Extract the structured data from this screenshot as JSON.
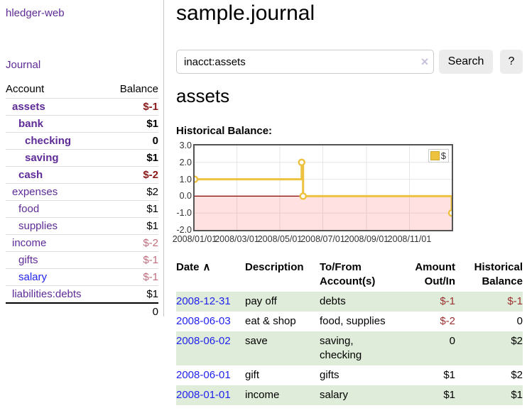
{
  "app": {
    "title": "hledger-web"
  },
  "sidebar": {
    "journal_label": "Journal",
    "accounts_table": {
      "headers": [
        "Account",
        "Balance"
      ],
      "rows": [
        {
          "account": "assets",
          "balance": "$-1",
          "depth": 1,
          "matched": true,
          "balance_tone": "negative"
        },
        {
          "account": "bank",
          "balance": "$1",
          "depth": 2,
          "matched": true,
          "balance_tone": "normal"
        },
        {
          "account": "checking",
          "balance": "0",
          "depth": 3,
          "matched": true,
          "balance_tone": "normal"
        },
        {
          "account": "saving",
          "balance": "$1",
          "depth": 3,
          "matched": true,
          "balance_tone": "normal"
        },
        {
          "account": "cash",
          "balance": "$-2",
          "depth": 2,
          "matched": true,
          "balance_tone": "negative"
        },
        {
          "account": "expenses",
          "balance": "$2",
          "depth": 1,
          "matched": false,
          "balance_tone": "normal"
        },
        {
          "account": "food",
          "balance": "$1",
          "depth": 2,
          "matched": false,
          "balance_tone": "normal"
        },
        {
          "account": "supplies",
          "balance": "$1",
          "depth": 2,
          "matched": false,
          "balance_tone": "normal"
        },
        {
          "account": "income",
          "balance": "$-2",
          "depth": 1,
          "matched": false,
          "balance_tone": "negative-soft"
        },
        {
          "account": "gifts",
          "balance": "$-1",
          "depth": 2,
          "matched": false,
          "balance_tone": "negative-soft"
        },
        {
          "account": "salary",
          "balance": "$-1",
          "depth": 2,
          "matched": false,
          "balance_tone": "negative-soft",
          "link_tone": "unvisited"
        },
        {
          "account": "liabilities:debts",
          "balance": "$1",
          "depth": 1,
          "matched": false,
          "balance_tone": "normal"
        }
      ],
      "total": "0"
    }
  },
  "main": {
    "title": "sample.journal",
    "search": {
      "value": "inacct:assets",
      "clear_icon": "×",
      "button_label": "Search",
      "help_label": "?"
    },
    "account_heading": "assets",
    "chart_label": "Historical Balance:",
    "register_table": {
      "headers": [
        "Date",
        "Description",
        "To/From Account(s)",
        "Amount Out/In",
        "Historical Balance"
      ],
      "sort_icon": "∧",
      "rows": [
        {
          "date": "2008-12-31",
          "description": "pay off",
          "accounts": "debts",
          "amount": "$-1",
          "balance": "$-1",
          "amount_tone": "negative",
          "balance_tone": "negative"
        },
        {
          "date": "2008-06-03",
          "description": "eat & shop",
          "accounts": "food, supplies",
          "amount": "$-2",
          "balance": "0",
          "amount_tone": "negative",
          "balance_tone": "normal"
        },
        {
          "date": "2008-06-02",
          "description": "save",
          "accounts": "saving, checking",
          "amount": "0",
          "balance": "$2",
          "amount_tone": "normal",
          "balance_tone": "normal"
        },
        {
          "date": "2008-06-01",
          "description": "gift",
          "accounts": "gifts",
          "amount": "$1",
          "balance": "$2",
          "amount_tone": "normal",
          "balance_tone": "normal"
        },
        {
          "date": "2008-01-01",
          "description": "income",
          "accounts": "salary",
          "amount": "$1",
          "balance": "$1",
          "amount_tone": "normal",
          "balance_tone": "normal"
        }
      ]
    }
  },
  "chart_data": {
    "type": "line",
    "title": "Historical Balance:",
    "legend": "$",
    "step": true,
    "xrange": [
      "2008/01/01",
      "2008/12/31"
    ],
    "ylim": [
      -2,
      3
    ],
    "x_ticks": [
      "2008/01/01",
      "2008/03/01",
      "2008/05/01",
      "2008/07/01",
      "2008/09/01",
      "2008/11/01"
    ],
    "y_ticks": [
      "3.0",
      "2.0",
      "1.0",
      "0.0",
      "-1.0",
      "-2.0"
    ],
    "series": [
      {
        "name": "$",
        "points": [
          [
            "2008/01/01",
            1
          ],
          [
            "2008/06/01",
            2
          ],
          [
            "2008/06/03",
            0
          ],
          [
            "2008/12/31",
            -1
          ]
        ]
      }
    ],
    "line_color": "#EDC240",
    "marker_fill": "#ffffff",
    "grid_color": "#e6e6e6",
    "zero_line_color": "#8b0000",
    "negative_region_color": "rgba(255,70,70,0.16)",
    "legend_position": "top-right"
  }
}
